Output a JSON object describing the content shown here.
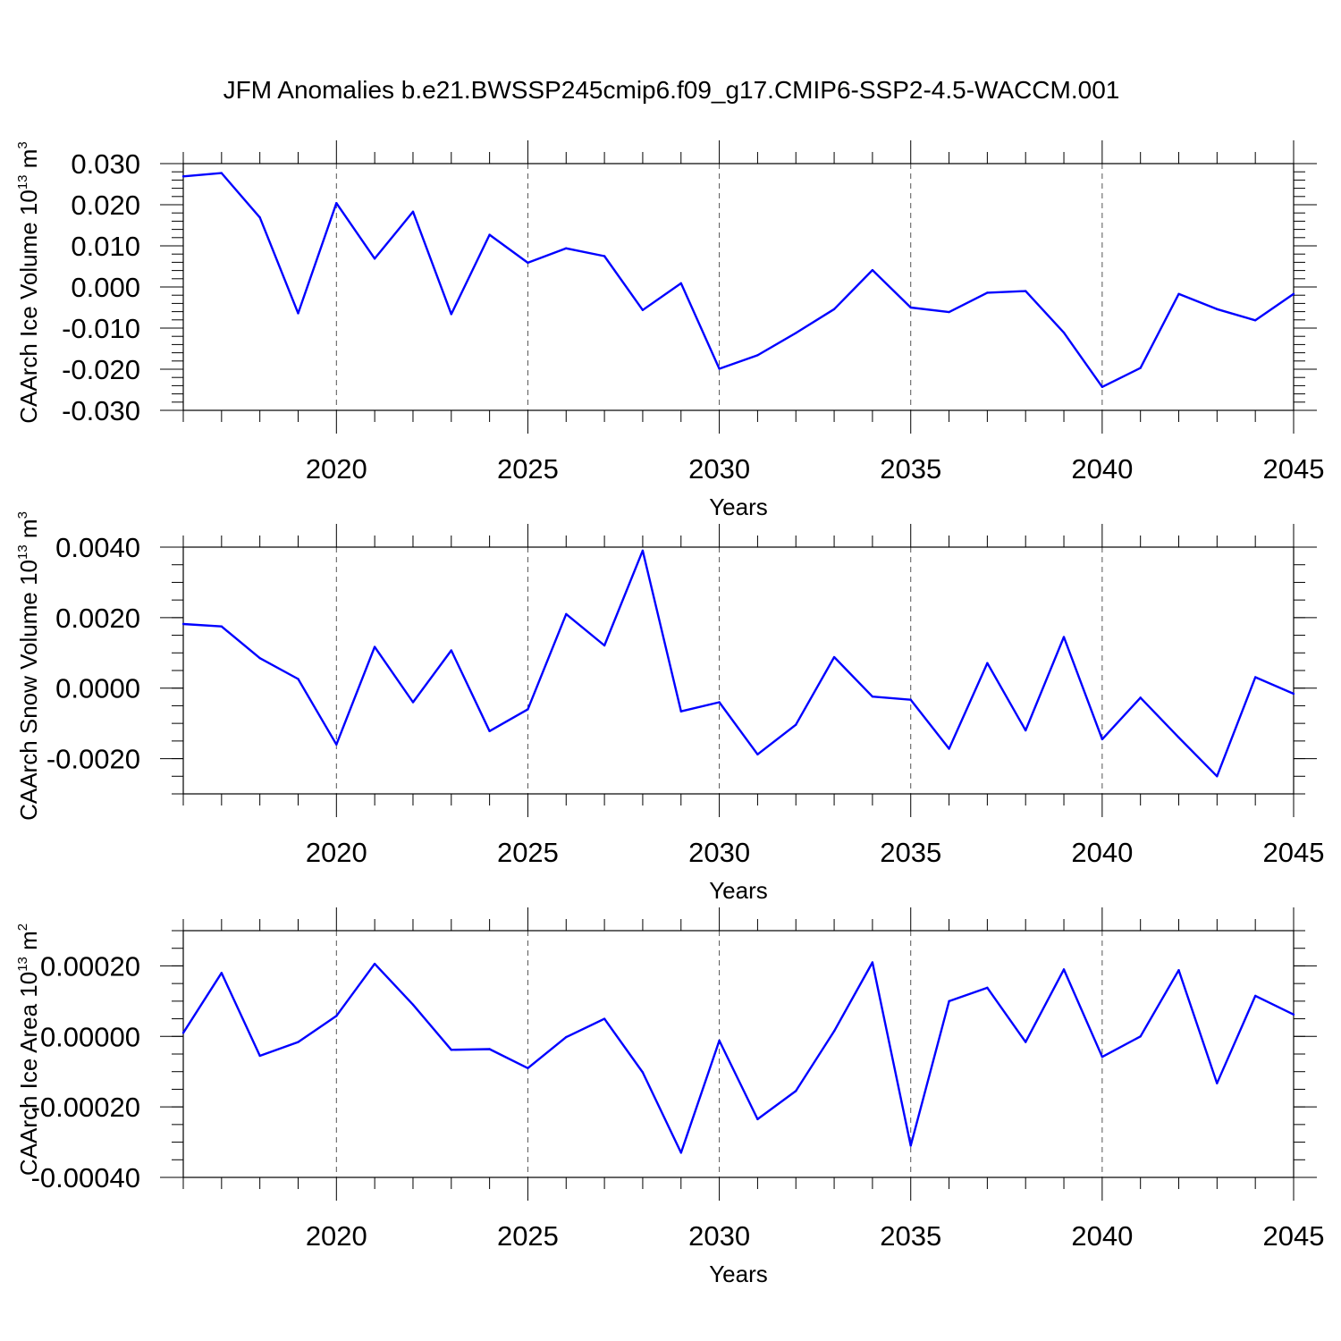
{
  "title": "JFM Anomalies b.e21.BWSSP245cmip6.f09_g17.CMIP6-SSP2-4.5-WACCM.001",
  "line_color": "#0000ff",
  "chart_data": [
    {
      "type": "line",
      "ylabel": "CAArch Ice Volume 10",
      "ylabel_sup": "13",
      "ylabel_unit": " m",
      "ylabel_unit_sup": "3",
      "xlabel": "Years",
      "xlim": [
        2016,
        2045
      ],
      "ylim": [
        -0.03,
        0.03
      ],
      "x_ticks": [
        2020,
        2025,
        2030,
        2035,
        2040,
        2045
      ],
      "x_tick_labels": [
        "2020",
        "2025",
        "2030",
        "2035",
        "2040",
        "2045"
      ],
      "y_ticks": [
        -0.03,
        -0.02,
        -0.01,
        0.0,
        0.01,
        0.02,
        0.03
      ],
      "y_tick_labels": [
        "-0.030",
        "-0.020",
        "-0.010",
        "0.000",
        "0.010",
        "0.020",
        "0.030"
      ],
      "y_minor_step": 0.002,
      "grid": "vertical dashed at major x ticks",
      "series": [
        {
          "name": "Ice Volume",
          "x": [
            2016,
            2017,
            2018,
            2019,
            2020,
            2021,
            2022,
            2023,
            2024,
            2025,
            2026,
            2027,
            2028,
            2029,
            2030,
            2031,
            2032,
            2033,
            2034,
            2035,
            2036,
            2037,
            2038,
            2039,
            2040,
            2041,
            2042,
            2043,
            2044,
            2045
          ],
          "values": [
            0.0269,
            0.0277,
            0.0169,
            -0.0064,
            0.0204,
            0.0069,
            0.0183,
            -0.0066,
            0.0127,
            0.0059,
            0.0094,
            0.0075,
            -0.0056,
            0.0009,
            -0.0199,
            -0.0166,
            -0.0112,
            -0.0054,
            0.0041,
            -0.005,
            -0.0061,
            -0.0014,
            -0.001,
            -0.0111,
            -0.0243,
            -0.0197,
            -0.0017,
            -0.0054,
            -0.0081,
            -0.0017
          ]
        }
      ]
    },
    {
      "type": "line",
      "ylabel": "CAArch Snow Volume 10",
      "ylabel_sup": "13",
      "ylabel_unit": " m",
      "ylabel_unit_sup": "3",
      "xlabel": "Years",
      "xlim": [
        2016,
        2045
      ],
      "ylim": [
        -0.003,
        0.004
      ],
      "x_ticks": [
        2020,
        2025,
        2030,
        2035,
        2040,
        2045
      ],
      "x_tick_labels": [
        "2020",
        "2025",
        "2030",
        "2035",
        "2040",
        "2045"
      ],
      "y_ticks": [
        -0.002,
        0.0,
        0.002,
        0.004
      ],
      "y_tick_labels": [
        "-0.0020",
        "0.0000",
        "0.0020",
        "0.0040"
      ],
      "y_minor_step": 0.0005,
      "grid": "vertical dashed at major x ticks",
      "series": [
        {
          "name": "Snow Volume",
          "x": [
            2016,
            2017,
            2018,
            2019,
            2020,
            2021,
            2022,
            2023,
            2024,
            2025,
            2026,
            2027,
            2028,
            2029,
            2030,
            2031,
            2032,
            2033,
            2034,
            2035,
            2036,
            2037,
            2038,
            2039,
            2040,
            2041,
            2042,
            2043,
            2044,
            2045
          ],
          "values": [
            0.00182,
            0.00175,
            0.00085,
            0.00026,
            -0.0016,
            0.00117,
            -0.0004,
            0.00107,
            -0.00122,
            -0.0006,
            0.0021,
            0.00121,
            0.0039,
            -0.00066,
            -0.0004,
            -0.00188,
            -0.00104,
            0.00088,
            -0.00024,
            -0.00033,
            -0.00172,
            0.00071,
            -0.0012,
            0.00145,
            -0.00145,
            -0.00027,
            -0.0014,
            -0.0025,
            0.00031,
            -0.00016
          ]
        }
      ]
    },
    {
      "type": "line",
      "ylabel": "CAArch Ice Area 10",
      "ylabel_sup": "13",
      "ylabel_unit": " m",
      "ylabel_unit_sup": "2",
      "xlabel": "Years",
      "xlim": [
        2016,
        2045
      ],
      "ylim": [
        -0.0004,
        0.0003
      ],
      "x_ticks": [
        2020,
        2025,
        2030,
        2035,
        2040,
        2045
      ],
      "x_tick_labels": [
        "2020",
        "2025",
        "2030",
        "2035",
        "2040",
        "2045"
      ],
      "y_ticks": [
        -0.0004,
        -0.0002,
        0.0,
        0.0002
      ],
      "y_tick_labels": [
        "-0.00040",
        "-0.00020",
        "0.00000",
        "0.00020"
      ],
      "y_minor_step": 5e-05,
      "grid": "vertical dashed at major x ticks",
      "series": [
        {
          "name": "Ice Area",
          "x": [
            2016,
            2017,
            2018,
            2019,
            2020,
            2021,
            2022,
            2023,
            2024,
            2025,
            2026,
            2027,
            2028,
            2029,
            2030,
            2031,
            2032,
            2033,
            2034,
            2035,
            2036,
            2037,
            2038,
            2039,
            2040,
            2041,
            2042,
            2043,
            2044,
            2045
          ],
          "values": [
            1e-05,
            0.00018,
            -5.5e-05,
            -1.6e-05,
            5.8e-05,
            0.000206,
            9e-05,
            -3.8e-05,
            -3.6e-05,
            -9e-05,
            -2e-06,
            5e-05,
            -0.000102,
            -0.00033,
            -1.2e-05,
            -0.000235,
            -0.000155,
            1.5e-05,
            0.00021,
            -0.00031,
            0.0001,
            0.000138,
            -1.6e-05,
            0.00019,
            -5.8e-05,
            0.0,
            0.000188,
            -0.000133,
            0.000115,
            6.2e-05
          ]
        }
      ]
    }
  ]
}
